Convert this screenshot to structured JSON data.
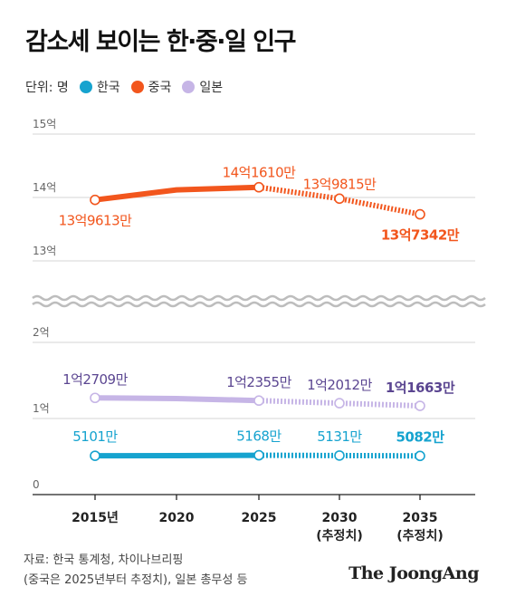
{
  "title": "감소세 보이는 한·중·일 인구",
  "unit_label": "단위: 명",
  "source_line1": "자료: 한국 통계청, 차이나브리핑",
  "source_line2": "(중국은 2025년부터 추정치), 일본 총무성 등",
  "brand": "The JoongAng",
  "chart_data": {
    "type": "line",
    "x": [
      "2015년",
      "2020",
      "2025",
      "2030\n(추정치)",
      "2035\n(추정치)"
    ],
    "x_tick_labels": [
      [
        "2015년"
      ],
      [
        "2020"
      ],
      [
        "2025"
      ],
      [
        "2030",
        "(추정치)"
      ],
      [
        "2035",
        "(추정치)"
      ]
    ],
    "upper_y_ticks": [
      "15억",
      "14억",
      "13억"
    ],
    "upper_y_values": [
      1500000000,
      1400000000,
      1300000000
    ],
    "lower_y_ticks": [
      "2억",
      "1억",
      "0"
    ],
    "lower_y_values": [
      200000000,
      100000000,
      0
    ],
    "axis_break": true,
    "projection_start": "2025",
    "legend_position": "top-left",
    "series": [
      {
        "name": "한국",
        "color": "#16a3cf",
        "label_color": "#16a3cf",
        "values": [
          51010000,
          51150000,
          51680000,
          51310000,
          50820000
        ],
        "point_labels": [
          "5101만",
          null,
          "5168만",
          "5131만",
          "5082만"
        ],
        "bold_last": true
      },
      {
        "name": "중국",
        "color": "#f2561d",
        "label_color": "#f2561d",
        "values": [
          1396130000,
          1412000000,
          1416100000,
          1398150000,
          1373420000
        ],
        "point_labels": [
          "13억9613만",
          null,
          "14억1610만",
          "13억9815만",
          "13억7342만"
        ],
        "bold_last": true
      },
      {
        "name": "일본",
        "color": "#c6b5e6",
        "label_color": "#5b4691",
        "values": [
          127090000,
          126200000,
          123550000,
          120120000,
          116630000
        ],
        "point_labels": [
          "1억2709만",
          null,
          "1억2355만",
          "1억2012만",
          "1억1663만"
        ],
        "bold_last": true
      }
    ]
  }
}
